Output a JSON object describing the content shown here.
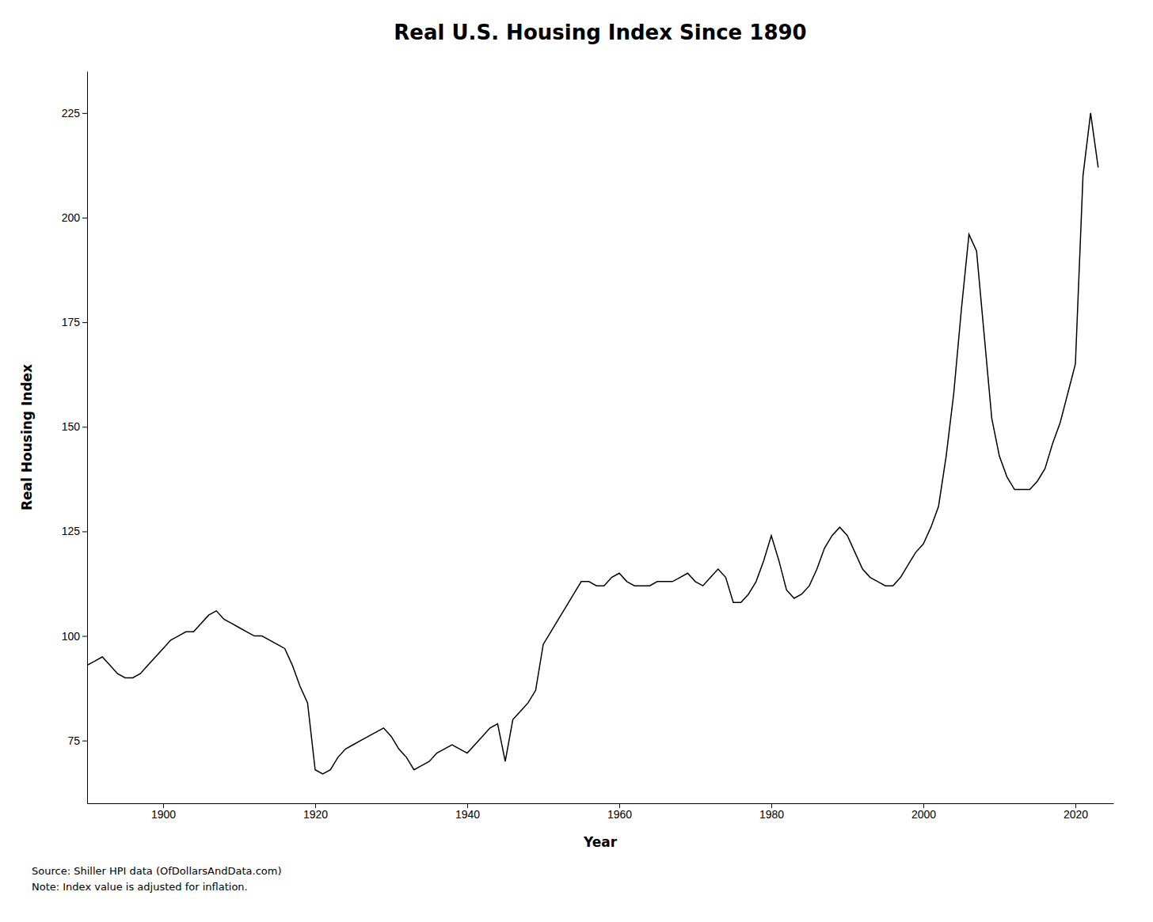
{
  "chart_data": {
    "type": "line",
    "title": "Real U.S. Housing Index Since 1890",
    "xlabel": "Year",
    "ylabel": "Real Housing Index",
    "annotations": [
      "Source: Shiller HPI data (OfDollarsAndData.com)",
      "Note: Index value is adjusted for inflation."
    ],
    "color": "#000000",
    "grid": false,
    "xlim": [
      1890,
      2025
    ],
    "ylim": [
      60,
      235
    ],
    "xticks": [
      1900,
      1920,
      1940,
      1960,
      1980,
      2000,
      2020
    ],
    "yticks": [
      75,
      100,
      125,
      150,
      175,
      200,
      225
    ],
    "x": [
      1890,
      1891,
      1892,
      1893,
      1894,
      1895,
      1896,
      1897,
      1898,
      1899,
      1900,
      1901,
      1902,
      1903,
      1904,
      1905,
      1906,
      1907,
      1908,
      1909,
      1910,
      1911,
      1912,
      1913,
      1914,
      1915,
      1916,
      1917,
      1918,
      1919,
      1920,
      1921,
      1922,
      1923,
      1924,
      1925,
      1926,
      1927,
      1928,
      1929,
      1930,
      1931,
      1932,
      1933,
      1934,
      1935,
      1936,
      1937,
      1938,
      1939,
      1940,
      1941,
      1942,
      1943,
      1944,
      1945,
      1946,
      1947,
      1948,
      1949,
      1950,
      1951,
      1952,
      1953,
      1954,
      1955,
      1956,
      1957,
      1958,
      1959,
      1960,
      1961,
      1962,
      1963,
      1964,
      1965,
      1966,
      1967,
      1968,
      1969,
      1970,
      1971,
      1972,
      1973,
      1974,
      1975,
      1976,
      1977,
      1978,
      1979,
      1980,
      1981,
      1982,
      1983,
      1984,
      1985,
      1986,
      1987,
      1988,
      1989,
      1990,
      1991,
      1992,
      1993,
      1994,
      1995,
      1996,
      1997,
      1998,
      1999,
      2000,
      2001,
      2002,
      2003,
      2004,
      2005,
      2006,
      2007,
      2008,
      2009,
      2010,
      2011,
      2012,
      2013,
      2014,
      2015,
      2016,
      2017,
      2018,
      2019,
      2020,
      2021,
      2022,
      2023
    ],
    "values": [
      93,
      94,
      95,
      93,
      91,
      90,
      90,
      91,
      93,
      95,
      97,
      99,
      100,
      101,
      101,
      103,
      105,
      106,
      104,
      103,
      102,
      101,
      100,
      100,
      99,
      98,
      97,
      93,
      88,
      84,
      68,
      67,
      68,
      71,
      73,
      74,
      75,
      76,
      77,
      78,
      76,
      73,
      71,
      68,
      69,
      70,
      72,
      73,
      74,
      73,
      72,
      74,
      76,
      78,
      79,
      70,
      80,
      82,
      84,
      87,
      98,
      101,
      104,
      107,
      110,
      113,
      113,
      112,
      112,
      114,
      115,
      113,
      112,
      112,
      112,
      113,
      113,
      113,
      114,
      115,
      113,
      112,
      114,
      116,
      114,
      108,
      108,
      110,
      113,
      118,
      124,
      118,
      111,
      109,
      110,
      112,
      116,
      121,
      124,
      126,
      124,
      120,
      116,
      114,
      113,
      112,
      112,
      114,
      117,
      120,
      122,
      126,
      131,
      143,
      158,
      178,
      196,
      192,
      172,
      152,
      143,
      138,
      135,
      135,
      135,
      137,
      140,
      146,
      151,
      158,
      165,
      210,
      225,
      212
    ]
  }
}
